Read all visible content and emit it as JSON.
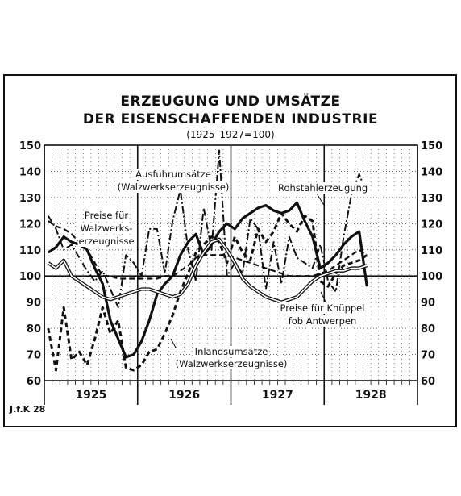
{
  "chart_data": {
    "type": "line",
    "title": "ERZEUGUNG UND UMSÄTZE",
    "subtitle": "DER EISENSCHAFFENDEN INDUSTRIE",
    "base_note": "(1925–1927=100)",
    "credit": "J.f.K 28",
    "ylim": [
      60,
      150
    ],
    "yticks": [
      60,
      70,
      80,
      90,
      100,
      110,
      120,
      130,
      140,
      150
    ],
    "x_start_month": 1,
    "x_months": 48,
    "year_labels": [
      "1925",
      "1926",
      "1927",
      "1928"
    ],
    "grid": true,
    "series": [
      {
        "name": "Rohstahlerzeugung",
        "style": "solid-thick",
        "values": [
          109,
          111,
          115,
          113,
          112,
          110,
          103,
          97,
          83,
          76,
          69,
          70,
          75,
          83,
          93,
          97,
          100,
          108,
          113,
          116,
          108,
          112,
          117,
          120,
          118,
          122,
          124,
          126,
          127,
          125,
          124,
          125,
          128,
          121,
          115,
          103,
          105,
          108,
          112,
          115,
          117,
          96
        ]
      },
      {
        "name": "Preise für Walzwerkserzeugnisse",
        "style": "dashed",
        "values": [
          121,
          119,
          118,
          116,
          113,
          110,
          105,
          100,
          100,
          99,
          99,
          99,
          99,
          99,
          99,
          100,
          100,
          102,
          104,
          107,
          108,
          108,
          108,
          108,
          107,
          106,
          105,
          104,
          103,
          102,
          101,
          100,
          100,
          100,
          100,
          101,
          102,
          104,
          106,
          108,
          110,
          108
        ]
      },
      {
        "name": "Ausfuhrumsätze (Walzwerkserzeugnisse)",
        "style": "dash-dot",
        "values": [
          123,
          118,
          110,
          112,
          107,
          102,
          98,
          102,
          95,
          88,
          108,
          105,
          100,
          118,
          118,
          101,
          121,
          133,
          110,
          98,
          126,
          110,
          148,
          100,
          105,
          101,
          122,
          118,
          95,
          113,
          97,
          115,
          107,
          105,
          103,
          112,
          98,
          94,
          115,
          131,
          139,
          131
        ]
      },
      {
        "name": "Inlandsumsätze (Walzwerkserzeugnisse)",
        "style": "dashed-thick",
        "values": [
          80,
          64,
          88,
          68,
          71,
          66,
          76,
          88,
          78,
          83,
          65,
          64,
          66,
          71,
          72,
          78,
          85,
          94,
          101,
          109,
          112,
          115,
          113,
          105,
          115,
          109,
          106,
          118,
          113,
          117,
          124,
          120,
          117,
          123,
          121,
          98,
          96,
          101,
          104,
          105,
          106,
          108
        ]
      },
      {
        "name": "Preise für Knüppel fob Antwerpen",
        "style": "double-line",
        "values": [
          105,
          103,
          106,
          100,
          98,
          96,
          94,
          92,
          91,
          92,
          93,
          94,
          95,
          95,
          94,
          93,
          92,
          93,
          97,
          104,
          109,
          113,
          114,
          110,
          105,
          99,
          96,
          94,
          92,
          91,
          90,
          91,
          92,
          95,
          98,
          100,
          101,
          102,
          102,
          103,
          103,
          104
        ]
      }
    ],
    "annotations": {
      "Rohstahlerzeugung": "Rohstahlerzeugung",
      "Ausfuhr_1": "Ausfuhrumsätze",
      "Ausfuhr_2": "(Walzwerkserzeugnisse)",
      "Preise_1": "Preise für",
      "Preise_2": "Walzwerks-",
      "Preise_3": "erzeugnisse",
      "Knueppel_1": "Preise für Knüppel",
      "Knueppel_2": "fob Antwerpen",
      "Inland_1": "Inlandsumsätze",
      "Inland_2": "(Walzwerkserzeugnisse)"
    }
  }
}
